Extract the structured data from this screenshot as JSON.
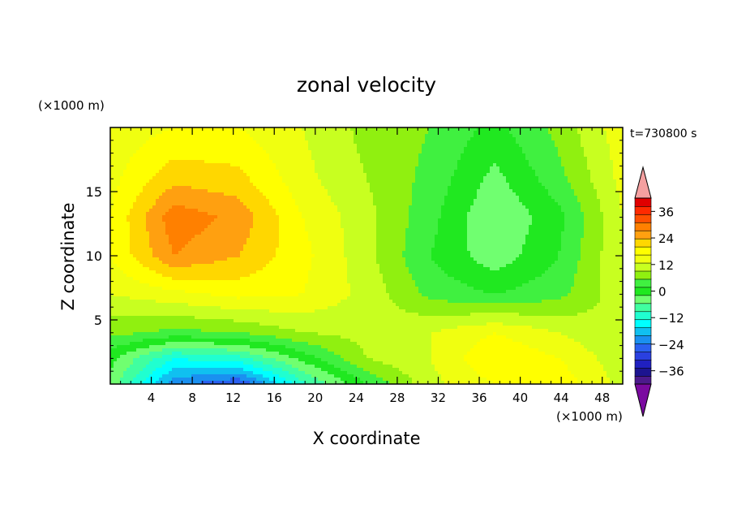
{
  "chart_data": {
    "type": "heatmap",
    "title": "zonal velocity",
    "xlabel": "X coordinate",
    "ylabel": "Z coordinate",
    "x_unit": "(×1000 m)",
    "y_unit": "(×1000 m)",
    "time_label": "t=730800 s",
    "xlim": [
      0,
      50
    ],
    "ylim": [
      0,
      20
    ],
    "x_ticks": [
      4,
      8,
      12,
      16,
      20,
      24,
      28,
      32,
      36,
      40,
      44,
      48
    ],
    "y_ticks": [
      5,
      10,
      15
    ],
    "x_grid": [
      0,
      6.25,
      12.5,
      18.75,
      25,
      31.25,
      37.5,
      43.75,
      50
    ],
    "z_grid": [
      0,
      2,
      4,
      7,
      10,
      13,
      16,
      20
    ],
    "values": [
      [
        -10,
        -26,
        -30,
        -16,
        -6,
        2,
        6,
        8,
        2
      ],
      [
        -8,
        -18,
        -16,
        -8,
        0,
        3,
        9,
        6,
        1
      ],
      [
        -2,
        -4,
        -3,
        0,
        1,
        3,
        6,
        3,
        0
      ],
      [
        3,
        5,
        7,
        6,
        2,
        -4,
        -6,
        -4,
        2
      ],
      [
        6,
        15,
        12,
        7,
        1,
        -6,
        -11,
        -6,
        3
      ],
      [
        6,
        17,
        14,
        6,
        1,
        -5,
        -12,
        -7,
        3
      ],
      [
        5,
        11,
        10,
        4,
        0,
        -4,
        -10,
        -4,
        4
      ],
      [
        4,
        6,
        6,
        3,
        -1,
        -3,
        -7,
        -2,
        5
      ]
    ],
    "colorbar": {
      "levels": [
        -42,
        -39,
        -36,
        -33,
        -30,
        -27,
        -24,
        -21,
        -18,
        -15,
        -12,
        -9,
        -6,
        -3,
        0,
        3,
        6,
        9,
        12,
        15,
        18,
        21,
        24,
        27,
        30,
        33,
        36,
        39,
        42
      ],
      "colors": [
        "#4c1a8c",
        "#1c1490",
        "#2020c0",
        "#2a40e0",
        "#2a60f0",
        "#1a90f0",
        "#10c0f0",
        "#00ffff",
        "#20ffd0",
        "#40ffa0",
        "#70ff70",
        "#20e820",
        "#40f040",
        "#90f010",
        "#c8ff20",
        "#f0ff10",
        "#ffff00",
        "#ffd700",
        "#ffa010",
        "#ff8000",
        "#ff5000",
        "#ff2a00",
        "#e00000"
      ],
      "tick_labels": [
        "36",
        "24",
        "12",
        "0",
        "−12",
        "−24",
        "−36"
      ],
      "tick_values": [
        36,
        24,
        12,
        0,
        -12,
        -24,
        -36
      ],
      "under_color": "#7a0aa0",
      "over_color": "#f4a0a0"
    }
  }
}
